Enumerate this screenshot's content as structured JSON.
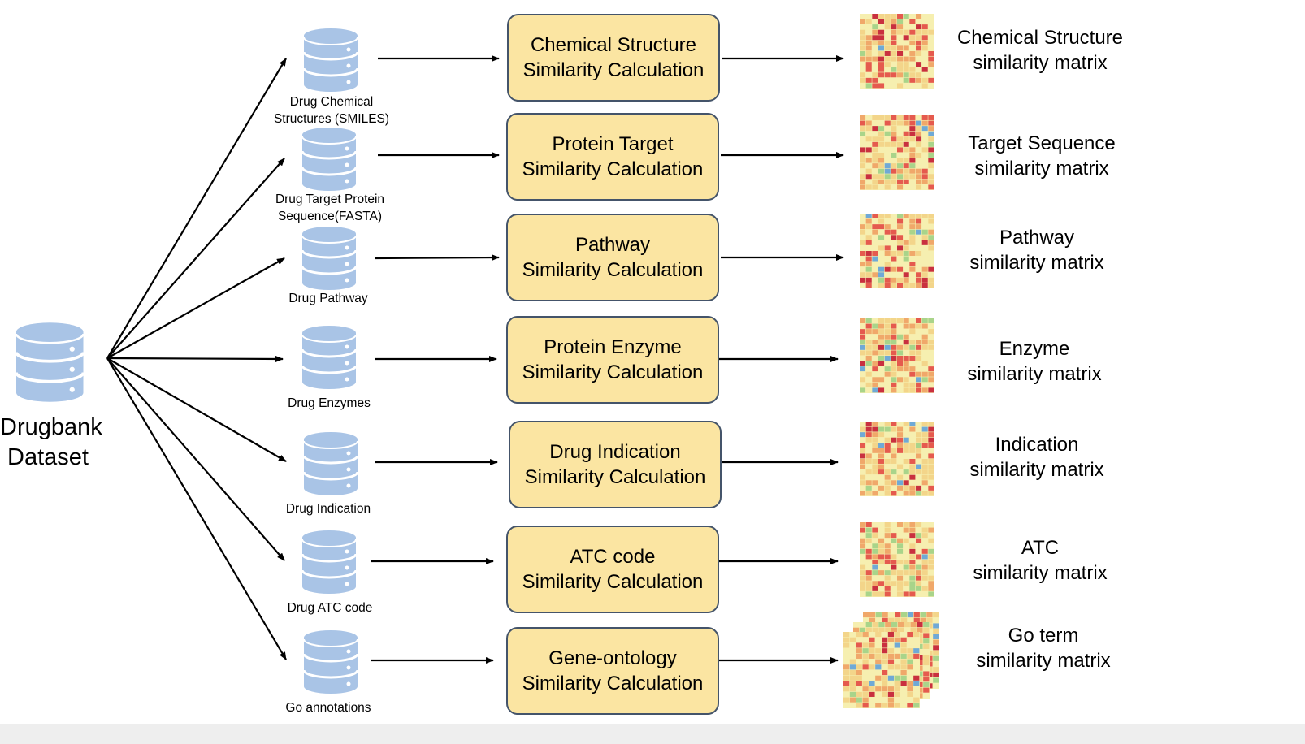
{
  "main_source": {
    "label_line1": "Drugbank",
    "label_line2": "Dataset",
    "icon": "database-icon"
  },
  "rows": [
    {
      "id": "chemical",
      "source_line1": "Drug Chemical",
      "source_line2": "Structures (SMILES)",
      "process_line1": "Chemical Structure",
      "process_line2": "Similarity Calculation",
      "output_line1": "Chemical Structure",
      "output_line2": "similarity matrix"
    },
    {
      "id": "target",
      "source_line1": "Drug Target Protein",
      "source_line2": "Sequence(FASTA)",
      "process_line1": "Protein Target",
      "process_line2": "Similarity Calculation",
      "output_line1": "Target Sequence",
      "output_line2": "similarity matrix"
    },
    {
      "id": "pathway",
      "source_line1": "Drug Pathway",
      "source_line2": "",
      "process_line1": "Pathway",
      "process_line2": "Similarity Calculation",
      "output_line1": "Pathway",
      "output_line2": "similarity matrix"
    },
    {
      "id": "enzyme",
      "source_line1": "Drug Enzymes",
      "source_line2": "",
      "process_line1": "Protein Enzyme",
      "process_line2": "Similarity Calculation",
      "output_line1": "Enzyme",
      "output_line2": "similarity matrix"
    },
    {
      "id": "indication",
      "source_line1": "Drug Indication",
      "source_line2": "",
      "process_line1": "Drug Indication",
      "process_line2": "Similarity Calculation",
      "output_line1": "Indication",
      "output_line2": "similarity matrix"
    },
    {
      "id": "atc",
      "source_line1": "Drug ATC code",
      "source_line2": "",
      "process_line1": "ATC code",
      "process_line2": "Similarity Calculation",
      "output_line1": "ATC",
      "output_line2": "similarity matrix"
    },
    {
      "id": "go",
      "source_line1": "Go annotations",
      "source_line2": "",
      "process_line1": "Gene-ontology",
      "process_line2": "Similarity Calculation",
      "output_line1": "Go term",
      "output_line2": "similarity matrix"
    }
  ],
  "colors": {
    "database_fill": "#a9c4e6",
    "process_fill": "#fbe5a2",
    "process_border": "#44546a",
    "heatmap_palette": [
      "#f6efb0",
      "#f3d58a",
      "#f0a86a",
      "#e55a4e",
      "#c9303f",
      "#a9d48a",
      "#6fa9d6"
    ]
  }
}
